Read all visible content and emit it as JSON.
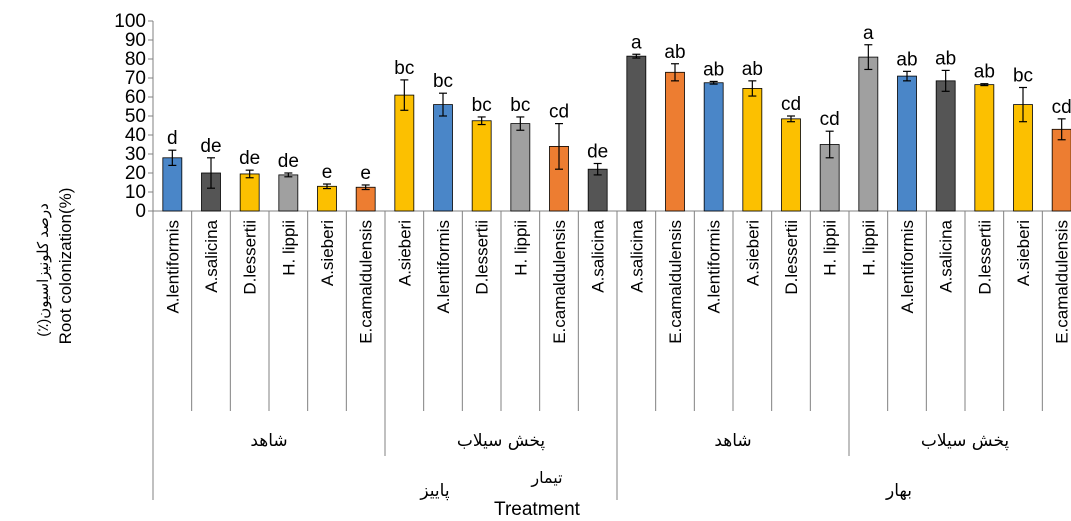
{
  "chart_data": {
    "type": "bar",
    "ylim": [
      0,
      100
    ],
    "yticks": [
      0,
      10,
      20,
      30,
      40,
      50,
      60,
      70,
      80,
      90,
      100
    ],
    "ylabel_fa": "(٪)درصد کلونیزاسیون",
    "ylabel_en": "Root colonization(%)",
    "xlabel_fa": "تیمار",
    "xlabel_en": "Treatment",
    "grid": false,
    "legend": "none",
    "colors": {
      "blue": "#4a86c8",
      "dark": "#555555",
      "yellow": "#fcc000",
      "gray": "#a0a0a0",
      "orange": "#ed7d31"
    },
    "seasons": [
      {
        "label": "پاییز",
        "start": 0,
        "end": 12
      },
      {
        "label": "بهار",
        "start": 12,
        "end": 24
      }
    ],
    "treatments": [
      {
        "label": "شاهد",
        "start": 0,
        "end": 6
      },
      {
        "label": "پخش سیلاب",
        "start": 6,
        "end": 12
      },
      {
        "label": "شاهد",
        "start": 12,
        "end": 18
      },
      {
        "label": "پخش سیلاب",
        "start": 18,
        "end": 24
      }
    ],
    "categories": [
      "A.lentiformis",
      "A.salicina",
      "D.lessertii",
      "H. lippii",
      "A.sieberi",
      "E.camaldulensis",
      "A.sieberi",
      "A.lentiformis",
      "D.lessertii",
      "H. lippii",
      "E.camaldulensis",
      "A.salicina",
      "A.salicina",
      "E.camaldulensis",
      "A.lentiformis",
      "A.sieberi",
      "D.lessertii",
      "H. lippii",
      "H. lippii",
      "A.lentiformis",
      "A.salicina",
      "D.lessertii",
      "A.sieberi",
      "E.camaldulensis"
    ],
    "values": [
      28,
      20,
      19.5,
      19,
      13,
      12.5,
      61,
      56,
      47.5,
      46,
      34,
      22,
      81.5,
      73,
      67.5,
      64.5,
      48.5,
      35,
      81,
      71,
      68.5,
      66.5,
      56,
      43
    ],
    "errors": [
      4,
      8,
      2,
      1,
      1.2,
      1.2,
      8,
      6,
      2,
      3.5,
      12,
      3,
      1,
      4.5,
      0.7,
      4,
      1.5,
      7,
      6.5,
      2.5,
      5.5,
      0.5,
      9,
      5.5
    ],
    "letters": [
      "d",
      "de",
      "de",
      "de",
      "e",
      "e",
      "bc",
      "bc",
      "bc",
      "bc",
      "cd",
      "de",
      "a",
      "ab",
      "ab",
      "ab",
      "cd",
      "cd",
      "a",
      "ab",
      "ab",
      "ab",
      "bc",
      "cd"
    ],
    "bar_colors": [
      "blue",
      "dark",
      "yellow",
      "gray",
      "yellow",
      "orange",
      "yellow",
      "blue",
      "yellow",
      "gray",
      "orange",
      "dark",
      "dark",
      "orange",
      "blue",
      "yellow",
      "yellow",
      "gray",
      "gray",
      "blue",
      "dark",
      "yellow",
      "yellow",
      "orange"
    ]
  }
}
